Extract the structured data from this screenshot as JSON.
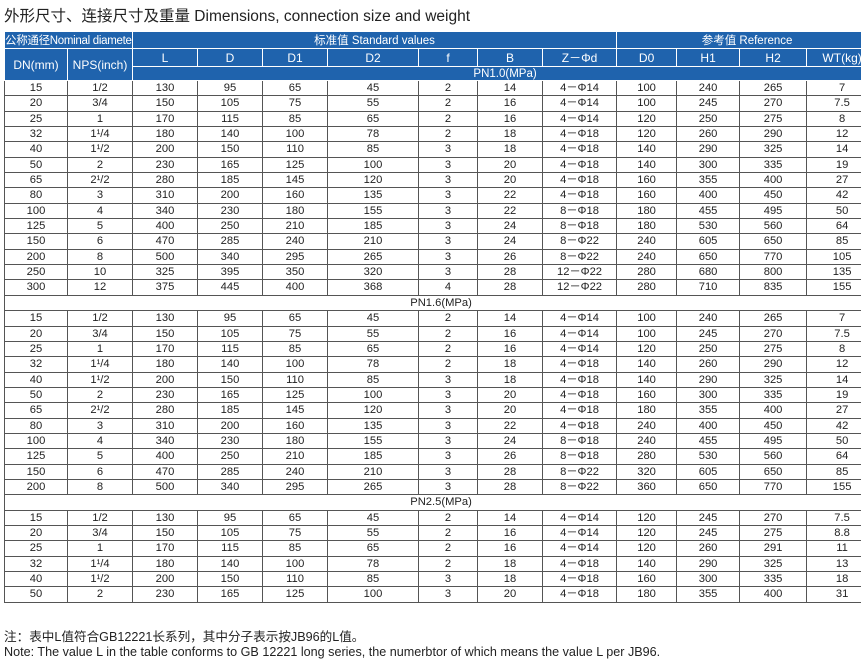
{
  "title": "外形尺寸、连接尺寸及重量 Dimensions, connection size and weight",
  "headers": {
    "nominal": "公称通径Nominal diameter",
    "standard": "标准值 Standard values",
    "reference": "参考值 Reference",
    "dn": "DN(mm)",
    "nps": "NPS(inch)",
    "cols": [
      "L",
      "D",
      "D1",
      "D2",
      "f",
      "B",
      "Z－Φd",
      "D0",
      "H1",
      "H2",
      "WT(kg)"
    ],
    "first_section": "PN1.0(MPa)"
  },
  "sections": [
    {
      "label": "PN1.0(MPa)",
      "rows": [
        [
          "15",
          "1/2",
          "130",
          "95",
          "65",
          "45",
          "2",
          "14",
          "4－Φ14",
          "100",
          "240",
          "265",
          "7"
        ],
        [
          "20",
          "3/4",
          "150",
          "105",
          "75",
          "55",
          "2",
          "16",
          "4－Φ14",
          "100",
          "245",
          "270",
          "7.5"
        ],
        [
          "25",
          "1",
          "170",
          "115",
          "85",
          "65",
          "2",
          "16",
          "4－Φ14",
          "120",
          "250",
          "275",
          "8"
        ],
        [
          "32",
          "1¹/4",
          "180",
          "140",
          "100",
          "78",
          "2",
          "18",
          "4－Φ18",
          "120",
          "260",
          "290",
          "12"
        ],
        [
          "40",
          "1¹/2",
          "200",
          "150",
          "110",
          "85",
          "3",
          "18",
          "4－Φ18",
          "140",
          "290",
          "325",
          "14"
        ],
        [
          "50",
          "2",
          "230",
          "165",
          "125",
          "100",
          "3",
          "20",
          "4－Φ18",
          "140",
          "300",
          "335",
          "19"
        ],
        [
          "65",
          "2¹/2",
          "280",
          "185",
          "145",
          "120",
          "3",
          "20",
          "4－Φ18",
          "160",
          "355",
          "400",
          "27"
        ],
        [
          "80",
          "3",
          "310",
          "200",
          "160",
          "135",
          "3",
          "22",
          "4－Φ18",
          "160",
          "400",
          "450",
          "42"
        ],
        [
          "100",
          "4",
          "340",
          "230",
          "180",
          "155",
          "3",
          "22",
          "8－Φ18",
          "180",
          "455",
          "495",
          "50"
        ],
        [
          "125",
          "5",
          "400",
          "250",
          "210",
          "185",
          "3",
          "24",
          "8－Φ18",
          "180",
          "530",
          "560",
          "64"
        ],
        [
          "150",
          "6",
          "470",
          "285",
          "240",
          "210",
          "3",
          "24",
          "8－Φ22",
          "240",
          "605",
          "650",
          "85"
        ],
        [
          "200",
          "8",
          "500",
          "340",
          "295",
          "265",
          "3",
          "26",
          "8－Φ22",
          "240",
          "650",
          "770",
          "105"
        ],
        [
          "250",
          "10",
          "325",
          "395",
          "350",
          "320",
          "3",
          "28",
          "12－Φ22",
          "280",
          "680",
          "800",
          "135"
        ],
        [
          "300",
          "12",
          "375",
          "445",
          "400",
          "368",
          "4",
          "28",
          "12－Φ22",
          "280",
          "710",
          "835",
          "155"
        ]
      ]
    },
    {
      "label": "PN1.6(MPa)",
      "rows": [
        [
          "15",
          "1/2",
          "130",
          "95",
          "65",
          "45",
          "2",
          "14",
          "4－Φ14",
          "100",
          "240",
          "265",
          "7"
        ],
        [
          "20",
          "3/4",
          "150",
          "105",
          "75",
          "55",
          "2",
          "16",
          "4－Φ14",
          "100",
          "245",
          "270",
          "7.5"
        ],
        [
          "25",
          "1",
          "170",
          "115",
          "85",
          "65",
          "2",
          "16",
          "4－Φ14",
          "120",
          "250",
          "275",
          "8"
        ],
        [
          "32",
          "1¹/4",
          "180",
          "140",
          "100",
          "78",
          "2",
          "18",
          "4－Φ18",
          "140",
          "260",
          "290",
          "12"
        ],
        [
          "40",
          "1¹/2",
          "200",
          "150",
          "110",
          "85",
          "3",
          "18",
          "4－Φ18",
          "140",
          "290",
          "325",
          "14"
        ],
        [
          "50",
          "2",
          "230",
          "165",
          "125",
          "100",
          "3",
          "20",
          "4－Φ18",
          "160",
          "300",
          "335",
          "19"
        ],
        [
          "65",
          "2¹/2",
          "280",
          "185",
          "145",
          "120",
          "3",
          "20",
          "4－Φ18",
          "180",
          "355",
          "400",
          "27"
        ],
        [
          "80",
          "3",
          "310",
          "200",
          "160",
          "135",
          "3",
          "22",
          "4－Φ18",
          "240",
          "400",
          "450",
          "42"
        ],
        [
          "100",
          "4",
          "340",
          "230",
          "180",
          "155",
          "3",
          "24",
          "8－Φ18",
          "240",
          "455",
          "495",
          "50"
        ],
        [
          "125",
          "5",
          "400",
          "250",
          "210",
          "185",
          "3",
          "26",
          "8－Φ18",
          "280",
          "530",
          "560",
          "64"
        ],
        [
          "150",
          "6",
          "470",
          "285",
          "240",
          "210",
          "3",
          "28",
          "8－Φ22",
          "320",
          "605",
          "650",
          "85"
        ],
        [
          "200",
          "8",
          "500",
          "340",
          "295",
          "265",
          "3",
          "28",
          "8－Φ22",
          "360",
          "650",
          "770",
          "155"
        ]
      ]
    },
    {
      "label": "PN2.5(MPa)",
      "rows": [
        [
          "15",
          "1/2",
          "130",
          "95",
          "65",
          "45",
          "2",
          "14",
          "4－Φ14",
          "120",
          "245",
          "270",
          "7.5"
        ],
        [
          "20",
          "3/4",
          "150",
          "105",
          "75",
          "55",
          "2",
          "16",
          "4－Φ14",
          "120",
          "245",
          "275",
          "8.8"
        ],
        [
          "25",
          "1",
          "170",
          "115",
          "85",
          "65",
          "2",
          "16",
          "4－Φ14",
          "120",
          "260",
          "291",
          "11"
        ],
        [
          "32",
          "1¹/4",
          "180",
          "140",
          "100",
          "78",
          "2",
          "18",
          "4－Φ18",
          "140",
          "290",
          "325",
          "13"
        ],
        [
          "40",
          "1¹/2",
          "200",
          "150",
          "110",
          "85",
          "3",
          "18",
          "4－Φ18",
          "160",
          "300",
          "335",
          "18"
        ],
        [
          "50",
          "2",
          "230",
          "165",
          "125",
          "100",
          "3",
          "20",
          "4－Φ18",
          "180",
          "355",
          "400",
          "31"
        ]
      ]
    }
  ],
  "notes": {
    "line1": "注：表中L值符合GB12221长系列，其中分子表示按JB96的L值。",
    "line2": "Note: The value L in the table conforms to GB 12221 long series, the numerbtor of which means the value L per JB96."
  },
  "colors": {
    "header_bg": "#1f63ad",
    "header_text": "#ffffff",
    "grid": "#555555"
  }
}
